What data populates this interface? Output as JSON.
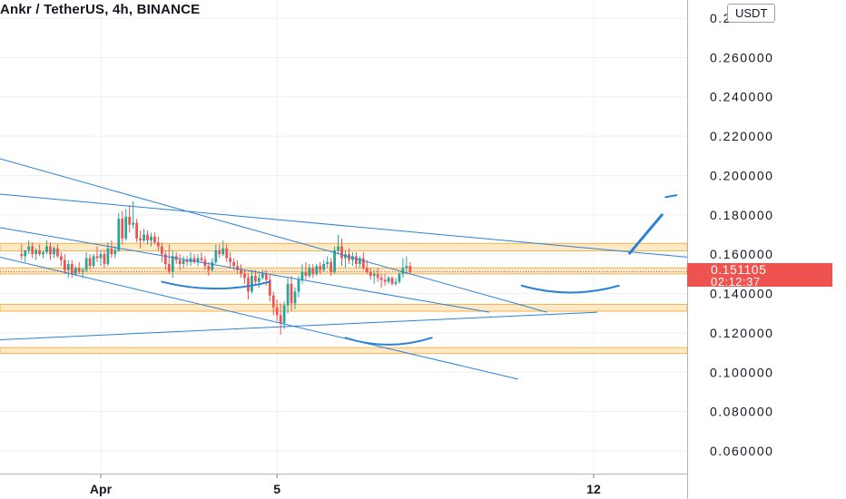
{
  "header": {
    "title": "Ankr / TetherUS, 4h, BINANCE",
    "unit": "USDT"
  },
  "price_tag": {
    "price": "0.151105",
    "countdown": "02:12:37"
  },
  "colors": {
    "up": "#26a69a",
    "down": "#ef5350",
    "trendline": "#2a82d6",
    "zone_fill": "#fde9c4",
    "zone_border": "#f5b250",
    "grid": "#eef0f3",
    "axis_text": "#131722"
  },
  "chart_data": {
    "type": "candlestick",
    "title": "Ankr / TetherUS, 4h, BINANCE",
    "xlabel": "",
    "ylabel": "",
    "grid": true,
    "y_axis_side": "right",
    "ylim": [
      0.05,
      0.29
    ],
    "y_ticks": [
      "0.060000",
      "0.080000",
      "0.100000",
      "0.120000",
      "0.140000",
      "0.160000",
      "0.180000",
      "0.200000",
      "0.220000",
      "0.240000",
      "0.260000",
      "0.280000"
    ],
    "x_ticks": [
      {
        "label": "Apr",
        "index": 22
      },
      {
        "label": "5",
        "index": 71
      },
      {
        "label": "12",
        "index": 159
      }
    ],
    "x_index_range": [
      -6,
      185
    ],
    "ohlc": [
      [
        0.16,
        0.165,
        0.157,
        0.159
      ],
      [
        0.159,
        0.162,
        0.156,
        0.162
      ],
      [
        0.162,
        0.167,
        0.16,
        0.164
      ],
      [
        0.164,
        0.166,
        0.158,
        0.16
      ],
      [
        0.16,
        0.163,
        0.157,
        0.162
      ],
      [
        0.162,
        0.165,
        0.159,
        0.16
      ],
      [
        0.16,
        0.162,
        0.158,
        0.161
      ],
      [
        0.161,
        0.167,
        0.16,
        0.164
      ],
      [
        0.164,
        0.166,
        0.157,
        0.16
      ],
      [
        0.16,
        0.164,
        0.158,
        0.163
      ],
      [
        0.163,
        0.165,
        0.158,
        0.159
      ],
      [
        0.159,
        0.161,
        0.154,
        0.157
      ],
      [
        0.157,
        0.16,
        0.15,
        0.152
      ],
      [
        0.152,
        0.157,
        0.148,
        0.155
      ],
      [
        0.155,
        0.157,
        0.148,
        0.15
      ],
      [
        0.15,
        0.154,
        0.149,
        0.153
      ],
      [
        0.153,
        0.156,
        0.15,
        0.151
      ],
      [
        0.151,
        0.153,
        0.148,
        0.152
      ],
      [
        0.152,
        0.161,
        0.151,
        0.158
      ],
      [
        0.158,
        0.16,
        0.152,
        0.154
      ],
      [
        0.154,
        0.16,
        0.153,
        0.159
      ],
      [
        0.159,
        0.164,
        0.156,
        0.158
      ],
      [
        0.158,
        0.162,
        0.154,
        0.16
      ],
      [
        0.16,
        0.162,
        0.153,
        0.155
      ],
      [
        0.155,
        0.166,
        0.154,
        0.163
      ],
      [
        0.163,
        0.167,
        0.158,
        0.16
      ],
      [
        0.16,
        0.164,
        0.158,
        0.162
      ],
      [
        0.162,
        0.181,
        0.161,
        0.178
      ],
      [
        0.178,
        0.182,
        0.165,
        0.168
      ],
      [
        0.168,
        0.183,
        0.167,
        0.179
      ],
      [
        0.179,
        0.185,
        0.171,
        0.175
      ],
      [
        0.175,
        0.187,
        0.173,
        0.176
      ],
      [
        0.176,
        0.178,
        0.166,
        0.168
      ],
      [
        0.168,
        0.172,
        0.163,
        0.167
      ],
      [
        0.167,
        0.173,
        0.166,
        0.17
      ],
      [
        0.17,
        0.172,
        0.165,
        0.167
      ],
      [
        0.167,
        0.171,
        0.164,
        0.169
      ],
      [
        0.169,
        0.171,
        0.165,
        0.166
      ],
      [
        0.166,
        0.169,
        0.162,
        0.164
      ],
      [
        0.164,
        0.166,
        0.156,
        0.16
      ],
      [
        0.16,
        0.162,
        0.152,
        0.155
      ],
      [
        0.155,
        0.165,
        0.15,
        0.151
      ],
      [
        0.151,
        0.162,
        0.148,
        0.159
      ],
      [
        0.159,
        0.161,
        0.155,
        0.157
      ],
      [
        0.157,
        0.16,
        0.152,
        0.155
      ],
      [
        0.155,
        0.159,
        0.153,
        0.157
      ],
      [
        0.157,
        0.159,
        0.154,
        0.156
      ],
      [
        0.156,
        0.161,
        0.154,
        0.158
      ],
      [
        0.158,
        0.16,
        0.155,
        0.156
      ],
      [
        0.156,
        0.16,
        0.154,
        0.158
      ],
      [
        0.158,
        0.161,
        0.156,
        0.157
      ],
      [
        0.157,
        0.159,
        0.152,
        0.154
      ],
      [
        0.154,
        0.156,
        0.149,
        0.152
      ],
      [
        0.152,
        0.158,
        0.151,
        0.156
      ],
      [
        0.156,
        0.165,
        0.155,
        0.162
      ],
      [
        0.162,
        0.165,
        0.158,
        0.16
      ],
      [
        0.16,
        0.167,
        0.159,
        0.163
      ],
      [
        0.163,
        0.165,
        0.156,
        0.158
      ],
      [
        0.158,
        0.161,
        0.153,
        0.156
      ],
      [
        0.156,
        0.158,
        0.152,
        0.154
      ],
      [
        0.154,
        0.157,
        0.15,
        0.152
      ],
      [
        0.152,
        0.155,
        0.148,
        0.15
      ],
      [
        0.15,
        0.152,
        0.145,
        0.148
      ],
      [
        0.148,
        0.15,
        0.137,
        0.141
      ],
      [
        0.141,
        0.152,
        0.14,
        0.149
      ],
      [
        0.149,
        0.152,
        0.144,
        0.146
      ],
      [
        0.146,
        0.15,
        0.143,
        0.148
      ],
      [
        0.148,
        0.152,
        0.147,
        0.15
      ],
      [
        0.15,
        0.152,
        0.144,
        0.147
      ],
      [
        0.147,
        0.15,
        0.136,
        0.139
      ],
      [
        0.139,
        0.141,
        0.129,
        0.133
      ],
      [
        0.133,
        0.137,
        0.126,
        0.129
      ],
      [
        0.129,
        0.135,
        0.119,
        0.125
      ],
      [
        0.125,
        0.136,
        0.122,
        0.134
      ],
      [
        0.134,
        0.148,
        0.13,
        0.145
      ],
      [
        0.145,
        0.149,
        0.131,
        0.135
      ],
      [
        0.135,
        0.143,
        0.132,
        0.141
      ],
      [
        0.141,
        0.149,
        0.138,
        0.147
      ],
      [
        0.147,
        0.155,
        0.145,
        0.151
      ],
      [
        0.151,
        0.156,
        0.147,
        0.149
      ],
      [
        0.149,
        0.155,
        0.148,
        0.153
      ],
      [
        0.153,
        0.155,
        0.148,
        0.15
      ],
      [
        0.15,
        0.155,
        0.149,
        0.154
      ],
      [
        0.154,
        0.156,
        0.15,
        0.152
      ],
      [
        0.152,
        0.157,
        0.151,
        0.155
      ],
      [
        0.155,
        0.159,
        0.153,
        0.156
      ],
      [
        0.156,
        0.158,
        0.149,
        0.151
      ],
      [
        0.151,
        0.164,
        0.15,
        0.162
      ],
      [
        0.162,
        0.17,
        0.16,
        0.164
      ],
      [
        0.164,
        0.168,
        0.154,
        0.158
      ],
      [
        0.158,
        0.162,
        0.153,
        0.16
      ],
      [
        0.16,
        0.163,
        0.155,
        0.157
      ],
      [
        0.157,
        0.161,
        0.154,
        0.159
      ],
      [
        0.159,
        0.161,
        0.153,
        0.155
      ],
      [
        0.155,
        0.159,
        0.153,
        0.158
      ],
      [
        0.158,
        0.161,
        0.152,
        0.153
      ],
      [
        0.153,
        0.157,
        0.15,
        0.151
      ],
      [
        0.151,
        0.153,
        0.147,
        0.149
      ],
      [
        0.149,
        0.152,
        0.145,
        0.15
      ],
      [
        0.15,
        0.153,
        0.146,
        0.148
      ],
      [
        0.148,
        0.15,
        0.143,
        0.147
      ],
      [
        0.147,
        0.15,
        0.144,
        0.146
      ],
      [
        0.146,
        0.149,
        0.145,
        0.148
      ],
      [
        0.148,
        0.149,
        0.144,
        0.145
      ],
      [
        0.145,
        0.148,
        0.144,
        0.146
      ],
      [
        0.146,
        0.151,
        0.145,
        0.15
      ],
      [
        0.15,
        0.158,
        0.148,
        0.153
      ],
      [
        0.153,
        0.159,
        0.15,
        0.154
      ],
      [
        0.154,
        0.156,
        0.15,
        0.151
      ]
    ],
    "horizontal_zones": [
      [
        0.1617,
        0.1655
      ],
      [
        0.15,
        0.153
      ],
      [
        0.131,
        0.1345
      ],
      [
        0.1095,
        0.1125
      ]
    ],
    "current_price": 0.151105,
    "trendlines": [
      {
        "from": [
          -6,
          0.1735
        ],
        "to": [
          130,
          0.1305
        ]
      },
      {
        "from": [
          -6,
          0.2085
        ],
        "to": [
          146,
          0.1305
        ]
      },
      {
        "from": [
          -6,
          0.1905
        ],
        "to": [
          185,
          0.1585
        ]
      },
      {
        "from": [
          -6,
          0.1585
        ],
        "to": [
          138,
          0.0965
        ]
      },
      {
        "from": [
          -6,
          0.1165
        ],
        "to": [
          160,
          0.1305
        ]
      }
    ],
    "curved_marks": [
      {
        "from": [
          39,
          0.146
        ],
        "to": [
          69,
          0.146
        ],
        "dip": 0.0035
      },
      {
        "from": [
          90,
          0.1175
        ],
        "to": [
          114,
          0.1175
        ],
        "dip": 0.0035
      },
      {
        "from": [
          139,
          0.144
        ],
        "to": [
          166,
          0.144
        ],
        "dip": 0.0035
      }
    ],
    "projection_arrow": {
      "from": [
        169,
        0.1605
      ],
      "to": [
        178,
        0.18
      ]
    },
    "projection_tick": {
      "from": [
        179,
        0.189
      ],
      "to": [
        182,
        0.19
      ]
    }
  }
}
